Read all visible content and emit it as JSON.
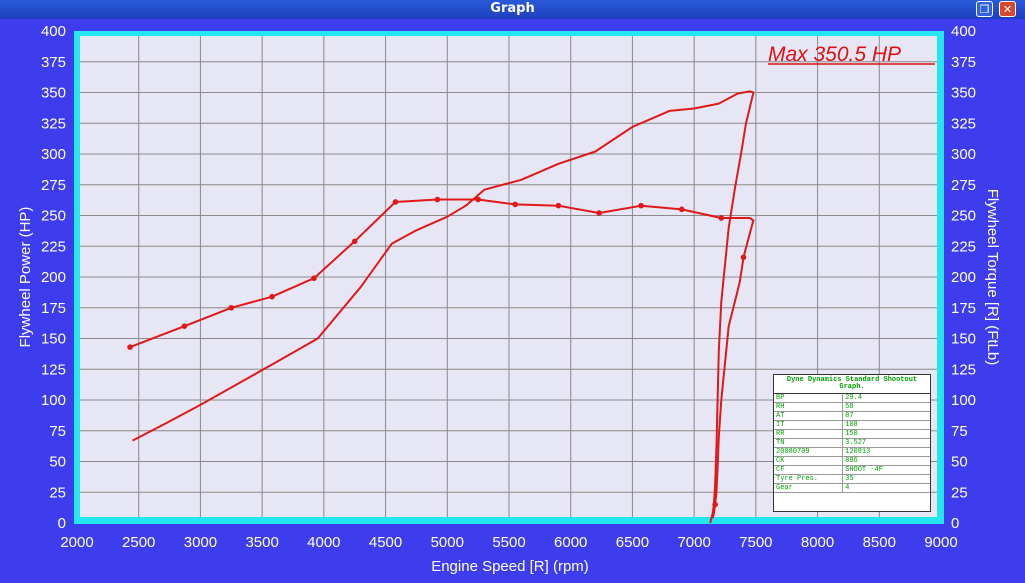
{
  "window": {
    "title": "Graph",
    "restore_icon": "restore-icon",
    "close_icon": "close-icon"
  },
  "colors": {
    "background": "#3d3ded",
    "plot_bg": "#e6e6f5",
    "plot_border": "#22e6f0",
    "curve": "#e01818",
    "grid": "#8a8a8a"
  },
  "max_label": "Max 350.5 HP",
  "info_table": {
    "header": "Dyne Dynamics Standard Shootout Graph.",
    "rows": [
      [
        "BP",
        "29.4"
      ],
      [
        "RH",
        "58"
      ],
      [
        "AT",
        "87"
      ],
      [
        "IT",
        "108"
      ],
      [
        "RR",
        "150"
      ],
      [
        "TN",
        "3.527"
      ],
      [
        "20080709",
        "120813"
      ],
      [
        "CK",
        "886"
      ],
      [
        "CF",
        "SHOOT -4F"
      ],
      [
        "Tyre Pres.",
        "35"
      ],
      [
        "Gear",
        "4"
      ]
    ]
  },
  "chart_data": {
    "type": "line",
    "title": "",
    "xlabel": "Engine Speed [R] (rpm)",
    "ylabel": "Flywheel Power (HP)",
    "y2label": "Flywheel Torque [R] (FtLb)",
    "xlim": [
      2000,
      9000
    ],
    "ylim": [
      0,
      400
    ],
    "y2lim": [
      0,
      400
    ],
    "x_ticks": [
      2000,
      2500,
      3000,
      3500,
      4000,
      4500,
      5000,
      5500,
      6000,
      6500,
      7000,
      7500,
      8000,
      8500,
      9000
    ],
    "y_ticks": [
      0,
      25,
      50,
      75,
      100,
      125,
      150,
      175,
      200,
      225,
      250,
      275,
      300,
      325,
      350,
      375,
      400
    ],
    "grid": true,
    "series": [
      {
        "name": "Power",
        "x": [
          2450,
          2700,
          3000,
          3300,
          3600,
          3950,
          4300,
          4550,
          4750,
          5000,
          5150,
          5300,
          5600,
          5900,
          6200,
          6500,
          6800,
          7000,
          7200,
          7350,
          7450,
          7480,
          7420,
          7380,
          7330,
          7280,
          7250,
          7220,
          7200,
          7190,
          7180,
          7170,
          7160,
          7150,
          7130
        ],
        "y": [
          67,
          80,
          96,
          113,
          130,
          150,
          192,
          227,
          238,
          249,
          258,
          271,
          279,
          292,
          302,
          322,
          335,
          337,
          341,
          349,
          351,
          350,
          325,
          300,
          272,
          240,
          210,
          180,
          140,
          100,
          60,
          30,
          15,
          8,
          0
        ]
      },
      {
        "name": "Torque",
        "x": [
          2430,
          2870,
          3250,
          3580,
          3920,
          4250,
          4580,
          4920,
          5250,
          5550,
          5900,
          6230,
          6570,
          6900,
          7220,
          7450,
          7480,
          7450,
          7400,
          7370,
          7330,
          7280,
          7250,
          7220,
          7200,
          7190,
          7180,
          7170,
          7160,
          7150
        ],
        "y": [
          143,
          160,
          175,
          184,
          199,
          229,
          261,
          263,
          263,
          259,
          258,
          252,
          258,
          255,
          248,
          248,
          246,
          235,
          216,
          196,
          180,
          160,
          130,
          100,
          70,
          45,
          25,
          15,
          8,
          4
        ],
        "markers": [
          [
            2430,
            143
          ],
          [
            2870,
            160
          ],
          [
            3250,
            175
          ],
          [
            3580,
            184
          ],
          [
            3920,
            199
          ],
          [
            4250,
            229
          ],
          [
            4580,
            261
          ],
          [
            4920,
            263
          ],
          [
            5250,
            263
          ],
          [
            5550,
            259
          ],
          [
            5900,
            258
          ],
          [
            6230,
            252
          ],
          [
            6570,
            258
          ],
          [
            6900,
            255
          ],
          [
            7220,
            248
          ],
          [
            7400,
            216
          ],
          [
            7170,
            15
          ]
        ]
      }
    ]
  }
}
